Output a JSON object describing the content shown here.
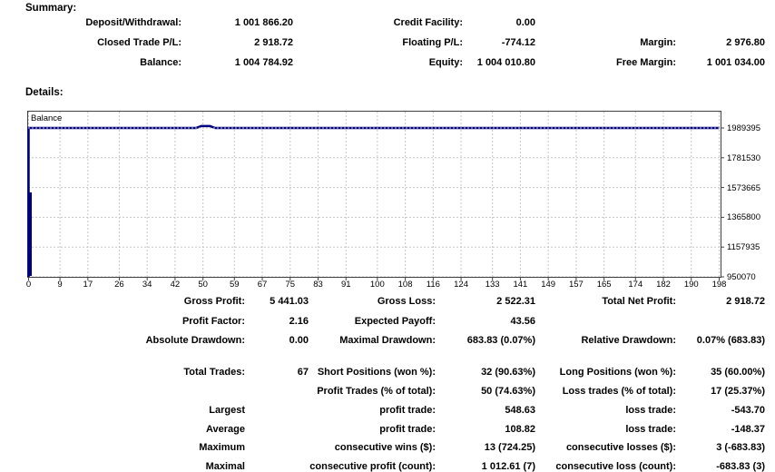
{
  "summary": {
    "title": "Summary:",
    "rows": [
      {
        "l1": "Deposit/Withdrawal:",
        "v1": "1 001 866.20",
        "l2": "Credit Facility:",
        "v2": "0.00",
        "l3": "",
        "v3": ""
      },
      {
        "l1": "Closed Trade P/L:",
        "v1": "2 918.72",
        "l2": "Floating P/L:",
        "v2": "-774.12",
        "l3": "Margin:",
        "v3": "2 976.80"
      },
      {
        "l1": "Balance:",
        "v1": "1 004 784.92",
        "l2": "Equity:",
        "v2": "1 004 010.80",
        "l3": "Free Margin:",
        "v3": "1 001 034.00"
      }
    ]
  },
  "details": {
    "title": "Details:"
  },
  "chart_data": {
    "type": "line",
    "title": "",
    "legend": [
      "Balance"
    ],
    "legend_position": "top-left",
    "grid": true,
    "line_color": "#000080",
    "grid_color": "#c6c6c6",
    "axis_color": "#404040",
    "x_ticks": [
      0,
      9,
      17,
      26,
      34,
      42,
      50,
      59,
      67,
      75,
      83,
      91,
      100,
      108,
      116,
      124,
      133,
      141,
      149,
      157,
      165,
      174,
      182,
      190,
      198
    ],
    "y_ticks": [
      1989395,
      1781530,
      1573665,
      1365800,
      1157935,
      950070
    ],
    "xlim": [
      0,
      198
    ],
    "ylim": [
      950070,
      1989395
    ],
    "series": [
      {
        "name": "Balance",
        "color": "#000080",
        "points": [
          [
            0,
            950070
          ],
          [
            0,
            1989395
          ],
          [
            48,
            1989395
          ],
          [
            49.5,
            2002500
          ],
          [
            52,
            2002500
          ],
          [
            53.5,
            1989395
          ],
          [
            198,
            1989395
          ]
        ]
      }
    ]
  },
  "stats": {
    "rows": [
      {
        "l1": "Gross Profit:",
        "v1": "5 441.03",
        "l2": "Gross Loss:",
        "v2": "2 522.31",
        "l3": "Total Net Profit:",
        "v3": "2 918.72"
      },
      {
        "l1": "Profit Factor:",
        "v1": "2.16",
        "l2": "Expected Payoff:",
        "v2": "43.56",
        "l3": "",
        "v3": ""
      },
      {
        "l1": "Absolute Drawdown:",
        "v1": "0.00",
        "l2": "Maximal Drawdown:",
        "v2": "683.83 (0.07%)",
        "l3": "Relative Drawdown:",
        "v3": "0.07% (683.83)"
      },
      {
        "l1": "Total Trades:",
        "v1": "67",
        "l2": "Short Positions (won %):",
        "v2": "32 (90.63%)",
        "l3": "Long Positions (won %):",
        "v3": "35 (60.00%)"
      },
      {
        "l1": "",
        "v1": "",
        "l2": "Profit Trades (% of total):",
        "v2": "50 (74.63%)",
        "l3": "Loss trades (% of total):",
        "v3": "17 (25.37%)"
      },
      {
        "l1": "Largest",
        "v1": "",
        "l2": "profit trade:",
        "v2": "548.63",
        "l3": "loss trade:",
        "v3": "-543.70"
      },
      {
        "l1": "Average",
        "v1": "",
        "l2": "profit trade:",
        "v2": "108.82",
        "l3": "loss trade:",
        "v3": "-148.37"
      },
      {
        "l1": "Maximum",
        "v1": "",
        "l2": "consecutive wins ($):",
        "v2": "13 (724.25)",
        "l3": "consecutive losses ($):",
        "v3": "3 (-683.83)"
      },
      {
        "l1": "Maximal",
        "v1": "",
        "l2": "consecutive profit (count):",
        "v2": "1 012.61 (7)",
        "l3": "consecutive loss (count):",
        "v3": "-683.83 (3)"
      }
    ]
  }
}
